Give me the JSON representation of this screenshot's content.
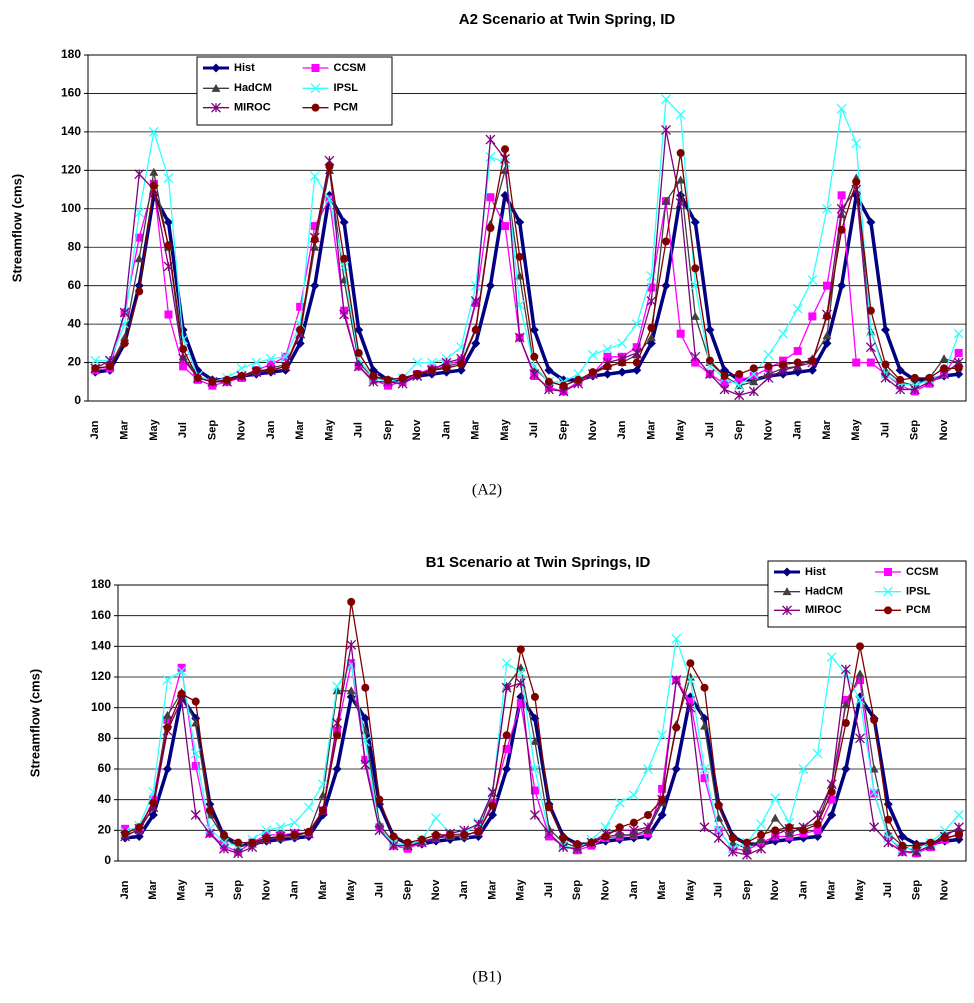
{
  "chart_data": [
    {
      "type": "line",
      "title": "A2 Scenario at Twin Spring, ID",
      "ylabel": "Streamflow (cms)",
      "caption": "(A2)",
      "categories": [
        "Jan",
        null,
        "Mar",
        null,
        "May",
        null,
        "Jul",
        null,
        "Sep",
        null,
        "Nov",
        null,
        "Jan",
        null,
        "Mar",
        null,
        "May",
        null,
        "Jul",
        null,
        "Sep",
        null,
        "Nov",
        null,
        "Jan",
        null,
        "Mar",
        null,
        "May",
        null,
        "Jul",
        null,
        "Sep",
        null,
        "Nov",
        null,
        "Jan",
        null,
        "Mar",
        null,
        "May",
        null,
        "Jul",
        null,
        "Sep",
        null,
        "Nov",
        null,
        "Jan",
        null,
        "Mar",
        null,
        "May",
        null,
        "Jul",
        null,
        "Sep",
        null,
        "Nov",
        null
      ],
      "ylim": [
        0,
        180
      ],
      "yticks": [
        0,
        20,
        40,
        60,
        80,
        100,
        120,
        140,
        160,
        180
      ],
      "grid": true,
      "legend": "top-left",
      "series": [
        {
          "name": "Hist",
          "color": "#000080",
          "values": [
            15,
            16,
            30,
            60,
            107,
            93,
            37,
            16,
            11,
            11,
            13,
            14,
            15,
            16,
            30,
            60,
            107,
            93,
            37,
            16,
            11,
            11,
            13,
            14,
            15,
            16,
            30,
            60,
            107,
            93,
            37,
            16,
            11,
            11,
            13,
            14,
            15,
            16,
            30,
            60,
            107,
            93,
            37,
            16,
            11,
            11,
            13,
            14,
            15,
            16,
            30,
            60,
            107,
            93,
            37,
            16,
            11,
            11,
            13,
            14
          ]
        },
        {
          "name": "CCSM",
          "color": "#ff00ff",
          "values": [
            16,
            17,
            46,
            85,
            113,
            45,
            18,
            11,
            8,
            10,
            12,
            16,
            19,
            23,
            49,
            91,
            105,
            47,
            18,
            11,
            8,
            10,
            14,
            17,
            19,
            21,
            51,
            106,
            91,
            33,
            13,
            7,
            5,
            10,
            14,
            23,
            23,
            28,
            59,
            104,
            35,
            20,
            14,
            9,
            11,
            13,
            17,
            21,
            26,
            44,
            60,
            107,
            20,
            20,
            14,
            8,
            5,
            9,
            14,
            25
          ]
        },
        {
          "name": "HadCM",
          "color": "#404040",
          "values": [
            17,
            18,
            33,
            74,
            119,
            80,
            23,
            13,
            10,
            11,
            13,
            15,
            17,
            19,
            35,
            80,
            120,
            63,
            20,
            12,
            11,
            12,
            14,
            16,
            18,
            20,
            38,
            92,
            120,
            65,
            17,
            10,
            8,
            11,
            14,
            18,
            20,
            24,
            33,
            104,
            115,
            44,
            20,
            13,
            8,
            10,
            14,
            17,
            18,
            22,
            34,
            97,
            116,
            36,
            16,
            10,
            8,
            12,
            22,
            20
          ]
        },
        {
          "name": "IPSL",
          "color": "#33ffff",
          "values": [
            21,
            21,
            40,
            98,
            140,
            116,
            32,
            13,
            10,
            12,
            17,
            20,
            22,
            23,
            40,
            117,
            105,
            70,
            22,
            12,
            10,
            12,
            20,
            20,
            22,
            28,
            60,
            127,
            124,
            50,
            18,
            10,
            10,
            14,
            24,
            27,
            30,
            40,
            65,
            157,
            149,
            60,
            18,
            12,
            8,
            14,
            24,
            35,
            48,
            63,
            100,
            152,
            134,
            36,
            14,
            9,
            8,
            11,
            14,
            35
          ]
        },
        {
          "name": "MIROC",
          "color": "#800080",
          "values": [
            17,
            21,
            46,
            118,
            110,
            70,
            22,
            12,
            10,
            10,
            13,
            15,
            16,
            18,
            35,
            85,
            125,
            45,
            18,
            10,
            10,
            9,
            13,
            16,
            20,
            22,
            52,
            136,
            126,
            33,
            14,
            6,
            5,
            9,
            14,
            20,
            22,
            25,
            52,
            141,
            103,
            23,
            14,
            6,
            3,
            5,
            12,
            16,
            18,
            20,
            45,
            100,
            110,
            28,
            12,
            6,
            6,
            10,
            14,
            20
          ]
        },
        {
          "name": "PCM",
          "color": "#800000",
          "values": [
            17,
            18,
            30,
            57,
            112,
            81,
            27,
            12,
            10,
            11,
            13,
            16,
            16,
            18,
            37,
            84,
            122,
            74,
            25,
            13,
            11,
            12,
            14,
            16,
            17,
            19,
            37,
            90,
            131,
            75,
            23,
            10,
            8,
            11,
            15,
            18,
            20,
            20,
            38,
            83,
            129,
            69,
            21,
            13,
            14,
            17,
            18,
            19,
            20,
            21,
            44,
            89,
            114,
            47,
            19,
            11,
            12,
            12,
            17,
            17
          ]
        }
      ]
    },
    {
      "type": "line",
      "title": "B1 Scenario at Twin Springs, ID",
      "ylabel": "Streamflow (cms)",
      "caption": "(B1)",
      "categories": [
        "Jan",
        null,
        "Mar",
        null,
        "May",
        null,
        "Jul",
        null,
        "Sep",
        null,
        "Nov",
        null,
        "Jan",
        null,
        "Mar",
        null,
        "May",
        null,
        "Jul",
        null,
        "Sep",
        null,
        "Nov",
        null,
        "Jan",
        null,
        "Mar",
        null,
        "May",
        null,
        "Jul",
        null,
        "Sep",
        null,
        "Nov",
        null,
        "Jan",
        null,
        "Mar",
        null,
        "May",
        null,
        "Jul",
        null,
        "Sep",
        null,
        "Nov",
        null,
        "Jan",
        null,
        "Mar",
        null,
        "May",
        null,
        "Jul",
        null,
        "Sep",
        null,
        "Nov",
        null
      ],
      "ylim": [
        0,
        180
      ],
      "yticks": [
        0,
        20,
        40,
        60,
        80,
        100,
        120,
        140,
        160,
        180
      ],
      "grid": true,
      "legend": "top-right",
      "series": [
        {
          "name": "Hist",
          "color": "#000080",
          "values": [
            15,
            16,
            30,
            60,
            107,
            93,
            37,
            16,
            11,
            11,
            13,
            14,
            15,
            16,
            30,
            60,
            107,
            93,
            37,
            16,
            11,
            11,
            13,
            14,
            15,
            16,
            30,
            60,
            107,
            93,
            37,
            16,
            11,
            11,
            13,
            14,
            15,
            16,
            30,
            60,
            107,
            93,
            37,
            16,
            11,
            11,
            13,
            14,
            15,
            16,
            30,
            60,
            107,
            93,
            37,
            16,
            11,
            11,
            13,
            14
          ]
        },
        {
          "name": "CCSM",
          "color": "#ff00ff",
          "values": [
            21,
            20,
            40,
            92,
            126,
            62,
            18,
            10,
            6,
            12,
            17,
            17,
            18,
            18,
            33,
            85,
            129,
            66,
            22,
            10,
            8,
            12,
            15,
            17,
            17,
            19,
            38,
            73,
            103,
            46,
            16,
            10,
            7,
            10,
            15,
            16,
            17,
            18,
            47,
            118,
            104,
            54,
            20,
            8,
            7,
            12,
            16,
            16,
            18,
            20,
            40,
            105,
            118,
            44,
            16,
            6,
            5,
            9,
            14,
            18
          ]
        },
        {
          "name": "HadCM",
          "color": "#404040",
          "values": [
            17,
            20,
            35,
            95,
            110,
            90,
            30,
            15,
            9,
            11,
            14,
            15,
            16,
            19,
            43,
            111,
            111,
            85,
            24,
            12,
            10,
            13,
            15,
            16,
            16,
            20,
            44,
            114,
            126,
            78,
            21,
            12,
            9,
            12,
            16,
            17,
            17,
            20,
            38,
            89,
            120,
            88,
            28,
            12,
            8,
            14,
            28,
            18,
            22,
            25,
            50,
            102,
            122,
            60,
            18,
            10,
            6,
            10,
            18,
            20
          ]
        },
        {
          "name": "IPSL",
          "color": "#33ffff",
          "values": [
            19,
            23,
            45,
            118,
            124,
            70,
            21,
            12,
            10,
            14,
            20,
            22,
            25,
            35,
            50,
            114,
            128,
            78,
            20,
            12,
            10,
            14,
            28,
            18,
            18,
            25,
            44,
            129,
            123,
            60,
            18,
            10,
            8,
            14,
            22,
            38,
            43,
            60,
            82,
            145,
            118,
            60,
            20,
            8,
            12,
            24,
            41,
            25,
            60,
            70,
            133,
            122,
            105,
            45,
            15,
            8,
            8,
            12,
            20,
            30
          ]
        },
        {
          "name": "MIROC",
          "color": "#800080",
          "values": [
            16,
            21,
            35,
            85,
            105,
            30,
            18,
            8,
            5,
            9,
            14,
            16,
            18,
            18,
            33,
            90,
            141,
            63,
            20,
            10,
            10,
            12,
            15,
            18,
            20,
            24,
            45,
            113,
            116,
            30,
            18,
            9,
            8,
            12,
            18,
            20,
            20,
            22,
            40,
            118,
            100,
            22,
            15,
            6,
            4,
            8,
            17,
            21,
            22,
            30,
            50,
            125,
            80,
            22,
            12,
            6,
            6,
            10,
            16,
            22
          ]
        },
        {
          "name": "PCM",
          "color": "#800000",
          "values": [
            18,
            22,
            38,
            87,
            109,
            104,
            33,
            17,
            12,
            12,
            15,
            16,
            17,
            19,
            33,
            82,
            169,
            113,
            40,
            16,
            12,
            14,
            17,
            17,
            17,
            19,
            36,
            82,
            138,
            107,
            35,
            15,
            11,
            12,
            16,
            22,
            25,
            30,
            40,
            87,
            129,
            113,
            36,
            15,
            12,
            17,
            20,
            22,
            20,
            24,
            45,
            90,
            140,
            92,
            27,
            10,
            10,
            12,
            15,
            17
          ]
        }
      ]
    }
  ]
}
